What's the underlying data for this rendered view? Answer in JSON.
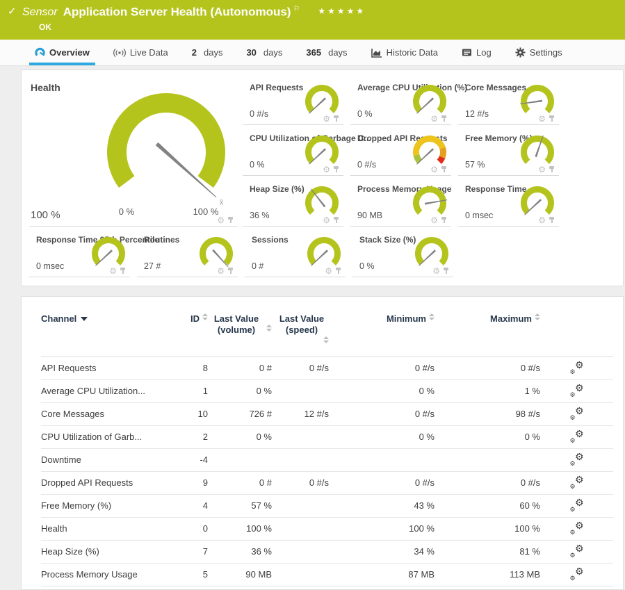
{
  "colors": {
    "brand_green": "#b5c41d",
    "accent_blue": "#2da9e1",
    "gauge_green": "#b4c41d",
    "needle_gray": "#828282",
    "warn_gold": "#ecc41c",
    "warn_orange": "#e5a01e",
    "error_red": "#e02d18"
  },
  "header": {
    "check_icon": "✓",
    "kind": "Sensor",
    "title": "Application Server Health (Autonomous)",
    "flag_icon": "⚐",
    "stars": "★★★★★",
    "status": "OK"
  },
  "tabs": {
    "items": [
      {
        "label": "Overview"
      },
      {
        "label": "Live Data"
      },
      {
        "num": "2",
        "unit": "days"
      },
      {
        "num": "30",
        "unit": "days"
      },
      {
        "num": "365",
        "unit": "days"
      },
      {
        "label": "Historic Data"
      },
      {
        "label": "Log"
      },
      {
        "label": "Settings"
      }
    ]
  },
  "health": {
    "title": "Health",
    "value": "100 %",
    "scale_min": "0 %",
    "scale_max": "100 %",
    "mean_marker": "x̄",
    "needle_deg": 132,
    "segments": [
      {
        "from": -127,
        "to": 127,
        "color": "#b4c41d"
      }
    ]
  },
  "mini_gauges": [
    {
      "title": "API Requests",
      "value": "0 #/s",
      "needle_deg": -133,
      "segments": [
        {
          "from": -135,
          "to": 135,
          "color": "#b4c41d"
        }
      ]
    },
    {
      "title": "Average CPU Utilization (%)",
      "value": "0 %",
      "needle_deg": -133,
      "segments": [
        {
          "from": -135,
          "to": 135,
          "color": "#b4c41d"
        }
      ]
    },
    {
      "title": "Core Messages",
      "value": "12 #/s",
      "needle_deg": -98,
      "segments": [
        {
          "from": -135,
          "to": 135,
          "color": "#b4c41d"
        }
      ]
    },
    {
      "title": "CPU Utilization of Garbage C...",
      "value": "0 %",
      "needle_deg": -133,
      "segments": [
        {
          "from": -135,
          "to": 135,
          "color": "#b4c41d"
        }
      ]
    },
    {
      "title": "Dropped API Requests",
      "value": "0 #/s",
      "needle_deg": -133,
      "segments": [
        {
          "from": -135,
          "to": -102,
          "color": "#a9c43a"
        },
        {
          "from": -102,
          "to": 72,
          "color": "#ecc41c"
        },
        {
          "from": 72,
          "to": 112,
          "color": "#e5a01e"
        },
        {
          "from": 112,
          "to": 135,
          "color": "#e02d18"
        }
      ]
    },
    {
      "title": "Free Memory (%)",
      "value": "57 %",
      "needle_deg": 19,
      "segments": [
        {
          "from": -135,
          "to": 135,
          "color": "#b4c41d"
        }
      ]
    },
    {
      "title": "Heap Size (%)",
      "value": "36 %",
      "needle_deg": -38,
      "segments": [
        {
          "from": -135,
          "to": 135,
          "color": "#b4c41d"
        }
      ]
    },
    {
      "title": "Process Memory Usage",
      "value": "90 MB",
      "needle_deg": 80,
      "segments": [
        {
          "from": -135,
          "to": 135,
          "color": "#b4c41d"
        }
      ]
    },
    {
      "title": "Response Time",
      "value": "0 msec",
      "needle_deg": -133,
      "segments": [
        {
          "from": -135,
          "to": 135,
          "color": "#b4c41d"
        }
      ]
    },
    {
      "title": "Response Time 95th Percentile",
      "value": "0 msec",
      "needle_deg": -133,
      "segments": [
        {
          "from": -135,
          "to": 135,
          "color": "#b4c41d"
        }
      ]
    },
    {
      "title": "Routines",
      "value": "27 #",
      "needle_deg": 138,
      "segments": [
        {
          "from": -135,
          "to": 135,
          "color": "#b4c41d"
        }
      ]
    },
    {
      "title": "Sessions",
      "value": "0 #",
      "needle_deg": -133,
      "segments": [
        {
          "from": -135,
          "to": 135,
          "color": "#b4c41d"
        }
      ]
    },
    {
      "title": "Stack Size (%)",
      "value": "0 %",
      "needle_deg": -133,
      "segments": [
        {
          "from": -135,
          "to": 135,
          "color": "#b4c41d"
        }
      ]
    }
  ],
  "table": {
    "headers": {
      "channel": "Channel",
      "id": "ID",
      "last_value_volume": "Last Value (volume)",
      "last_value_speed": "Last Value (speed)",
      "minimum": "Minimum",
      "maximum": "Maximum"
    },
    "rows": [
      {
        "name": "API Requests",
        "id": "8",
        "last_value_volume": "0 #",
        "last_value_speed": "0 #/s",
        "minimum": "0 #/s",
        "maximum": "0 #/s"
      },
      {
        "name": "Average CPU Utilization...",
        "id": "1",
        "last_value_volume": "0 %",
        "last_value_speed": "",
        "minimum": "0 %",
        "maximum": "1 %"
      },
      {
        "name": "Core Messages",
        "id": "10",
        "last_value_volume": "726 #",
        "last_value_speed": "12 #/s",
        "minimum": "0 #/s",
        "maximum": "98 #/s"
      },
      {
        "name": "CPU Utilization of Garb...",
        "id": "2",
        "last_value_volume": "0 %",
        "last_value_speed": "",
        "minimum": "0 %",
        "maximum": "0 %"
      },
      {
        "name": "Downtime",
        "id": "-4",
        "last_value_volume": "",
        "last_value_speed": "",
        "minimum": "",
        "maximum": ""
      },
      {
        "name": "Dropped API Requests",
        "id": "9",
        "last_value_volume": "0 #",
        "last_value_speed": "0 #/s",
        "minimum": "0 #/s",
        "maximum": "0 #/s"
      },
      {
        "name": "Free Memory (%)",
        "id": "4",
        "last_value_volume": "57 %",
        "last_value_speed": "",
        "minimum": "43 %",
        "maximum": "60 %"
      },
      {
        "name": "Health",
        "id": "0",
        "last_value_volume": "100 %",
        "last_value_speed": "",
        "minimum": "100 %",
        "maximum": "100 %"
      },
      {
        "name": "Heap Size (%)",
        "id": "7",
        "last_value_volume": "36 %",
        "last_value_speed": "",
        "minimum": "34 %",
        "maximum": "81 %"
      },
      {
        "name": "Process Memory Usage",
        "id": "5",
        "last_value_volume": "90 MB",
        "last_value_speed": "",
        "minimum": "87 MB",
        "maximum": "113 MB"
      }
    ]
  }
}
